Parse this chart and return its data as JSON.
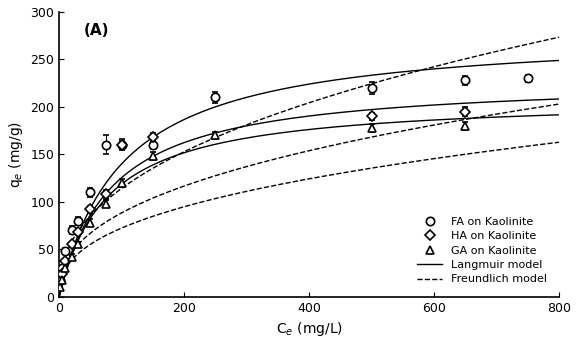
{
  "title": "(A)",
  "xlabel": "C$_{e}$ (mg/L)",
  "ylabel": "q$_{e}$ (mg/g)",
  "xlim": [
    0,
    800
  ],
  "ylim": [
    0,
    300
  ],
  "xticks": [
    0,
    200,
    400,
    600,
    800
  ],
  "yticks": [
    0,
    50,
    100,
    150,
    200,
    250,
    300
  ],
  "FA_x": [
    2,
    5,
    10,
    20,
    30,
    50,
    75,
    100,
    150,
    250,
    500,
    650,
    750
  ],
  "FA_y": [
    18,
    30,
    48,
    70,
    80,
    110,
    160,
    160,
    160,
    210,
    220,
    228,
    230
  ],
  "FA_yerr": [
    2,
    2,
    3,
    4,
    4,
    5,
    10,
    6,
    4,
    6,
    6,
    5,
    4
  ],
  "HA_x": [
    2,
    5,
    10,
    20,
    30,
    50,
    75,
    100,
    150,
    500,
    650
  ],
  "HA_y": [
    15,
    24,
    38,
    55,
    68,
    92,
    108,
    160,
    168,
    190,
    195
  ],
  "HA_yerr": [
    2,
    2,
    2,
    3,
    3,
    4,
    4,
    4,
    4,
    4,
    5
  ],
  "GA_x": [
    2,
    5,
    10,
    20,
    30,
    50,
    75,
    100,
    150,
    250,
    500,
    650
  ],
  "GA_y": [
    10,
    18,
    30,
    42,
    55,
    78,
    98,
    120,
    148,
    170,
    178,
    180
  ],
  "GA_yerr": [
    2,
    2,
    2,
    3,
    3,
    4,
    4,
    4,
    4,
    4,
    4,
    4
  ],
  "langmuir_FA_params": {
    "qmax": 280.0,
    "KL": 0.01
  },
  "langmuir_HA_params": {
    "qmax": 230.0,
    "KL": 0.012
  },
  "langmuir_GA_params": {
    "qmax": 210.0,
    "KL": 0.013
  },
  "freundlich_FA_params": {
    "KF": 16.5,
    "n": 0.42
  },
  "freundlich_HA_params": {
    "KF": 14.0,
    "n": 0.4
  },
  "freundlich_GA_params": {
    "KF": 12.0,
    "n": 0.39
  },
  "background_color": "#ffffff",
  "line_color": "#000000"
}
